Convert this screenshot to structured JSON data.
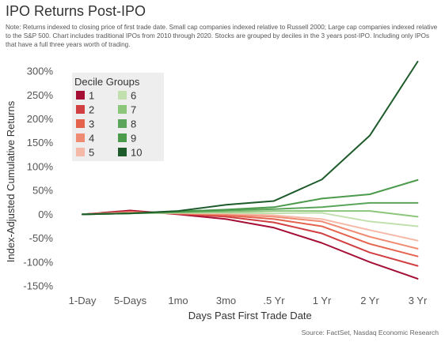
{
  "title": "IPO Returns Post-IPO",
  "note": "Note: Returns indexed to closing price of first trade date. Small cap companies indexed relative to Russell 2000; Large cap companies indexed relative to the S&P 500. Chart includes traditional IPOs from 2010 through 2020. Stocks are grouped by deciles in the 3 years post-IPO. Including only IPOs that have a full three years worth of trading.",
  "source": "Source: FactSet, Nasdaq Economic Research",
  "chart_data": {
    "type": "line",
    "xlabel": "Days Past First Trade Date",
    "ylabel": "Index-Adjusted Cumulative Returns",
    "x": [
      "1-Day",
      "5-Days",
      "1mo",
      "3mo",
      ".5 Yr",
      "1 Yr",
      "2 Yr",
      "3 Yr"
    ],
    "ylim": [
      -150,
      320
    ],
    "yticks": [
      -150,
      -100,
      -50,
      0,
      50,
      100,
      150,
      200,
      250,
      300
    ],
    "ytick_labels": [
      "-150%",
      "-100%",
      "-50%",
      "0%",
      "50%",
      "100%",
      "150%",
      "200%",
      "250%",
      "300%"
    ],
    "grid": false,
    "legend": {
      "title": "Decile Groups",
      "placement": "top-left"
    },
    "series": [
      {
        "name": "1",
        "color": "#a50f36",
        "values": [
          0,
          8,
          0,
          -10,
          -28,
          -60,
          -100,
          -135
        ]
      },
      {
        "name": "2",
        "color": "#d13f42",
        "values": [
          0,
          6,
          1,
          -5,
          -17,
          -40,
          -80,
          -108
        ]
      },
      {
        "name": "3",
        "color": "#e5634d",
        "values": [
          0,
          5,
          2,
          -2,
          -10,
          -25,
          -62,
          -88
        ]
      },
      {
        "name": "4",
        "color": "#f08b73",
        "values": [
          0,
          4,
          2,
          0,
          -5,
          -15,
          -47,
          -72
        ]
      },
      {
        "name": "5",
        "color": "#f6b9a8",
        "values": [
          0,
          3,
          3,
          2,
          -2,
          -10,
          -33,
          -55
        ]
      },
      {
        "name": "6",
        "color": "#c2e0ad",
        "values": [
          0,
          2,
          3,
          3,
          2,
          3,
          -15,
          -25
        ]
      },
      {
        "name": "7",
        "color": "#8cc67a",
        "values": [
          0,
          2,
          4,
          5,
          7,
          7,
          7,
          -5
        ]
      },
      {
        "name": "8",
        "color": "#5aa55a",
        "values": [
          0,
          2,
          5,
          8,
          11,
          15,
          24,
          24
        ]
      },
      {
        "name": "9",
        "color": "#4c9a4c",
        "values": [
          0,
          2,
          6,
          10,
          15,
          33,
          42,
          72
        ]
      },
      {
        "name": "10",
        "color": "#1e5c2c",
        "values": [
          0,
          2,
          7,
          20,
          28,
          73,
          165,
          320
        ]
      }
    ]
  }
}
